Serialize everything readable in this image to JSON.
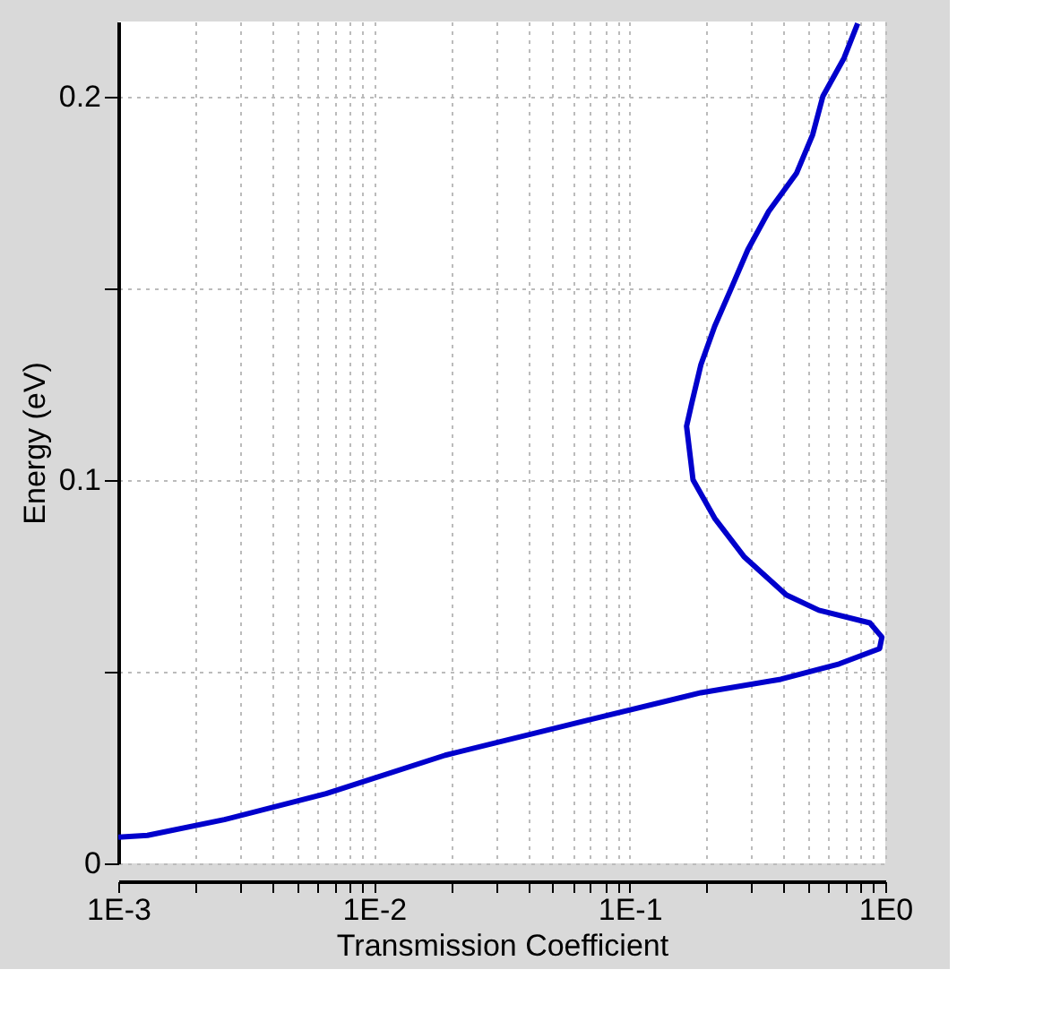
{
  "chart_data": {
    "type": "line",
    "xlabel": "Transmission Coefficient",
    "ylabel": "Energy (eV)",
    "log": "x",
    "grid": true,
    "marker": "none",
    "line_style": "solid",
    "xlim": [
      0.001,
      1
    ],
    "ylim": [
      0,
      0.2195
    ],
    "xticks": [
      {
        "value": 0.001,
        "label": "1E-3"
      },
      {
        "value": 0.002,
        "label": null
      },
      {
        "value": 0.003,
        "label": null
      },
      {
        "value": 0.004,
        "label": null
      },
      {
        "value": 0.005,
        "label": null
      },
      {
        "value": 0.006,
        "label": null
      },
      {
        "value": 0.007,
        "label": null
      },
      {
        "value": 0.008,
        "label": null
      },
      {
        "value": 0.009,
        "label": null
      },
      {
        "value": 0.01,
        "label": "1E-2"
      },
      {
        "value": 0.02,
        "label": null
      },
      {
        "value": 0.03,
        "label": null
      },
      {
        "value": 0.04,
        "label": null
      },
      {
        "value": 0.05,
        "label": null
      },
      {
        "value": 0.06,
        "label": null
      },
      {
        "value": 0.07,
        "label": null
      },
      {
        "value": 0.08,
        "label": null
      },
      {
        "value": 0.09,
        "label": null
      },
      {
        "value": 0.1,
        "label": "1E-1"
      },
      {
        "value": 0.2,
        "label": null
      },
      {
        "value": 0.3,
        "label": null
      },
      {
        "value": 0.4,
        "label": null
      },
      {
        "value": 0.5,
        "label": null
      },
      {
        "value": 0.6,
        "label": null
      },
      {
        "value": 0.7,
        "label": null
      },
      {
        "value": 0.8,
        "label": null
      },
      {
        "value": 0.9,
        "label": null
      },
      {
        "value": 1,
        "label": "1E0"
      }
    ],
    "yticks": [
      0,
      {
        "value": 0.05,
        "label": null
      },
      0.1,
      {
        "value": 0.15,
        "label": null
      },
      0.2
    ],
    "series": [
      {
        "color": "#0000cc",
        "x": [
          0.001,
          0.0013,
          0.0026,
          0.0065,
          0.019,
          0.072,
          0.19,
          0.39,
          0.66,
          0.95,
          0.97,
          0.87,
          0.55,
          0.41,
          0.28,
          0.215,
          0.177,
          0.167,
          0.175,
          0.19,
          0.215,
          0.25,
          0.29,
          0.35,
          0.45,
          0.52,
          0.57,
          0.69,
          0.78
        ],
        "values": [
          0.0068,
          0.0073,
          0.0114,
          0.0182,
          0.0282,
          0.0377,
          0.0445,
          0.048,
          0.052,
          0.056,
          0.059,
          0.0627,
          0.066,
          0.07,
          0.08,
          0.09,
          0.1,
          0.114,
          0.12,
          0.13,
          0.14,
          0.15,
          0.16,
          0.17,
          0.18,
          0.19,
          0.2,
          0.21,
          0.219
        ]
      }
    ]
  }
}
